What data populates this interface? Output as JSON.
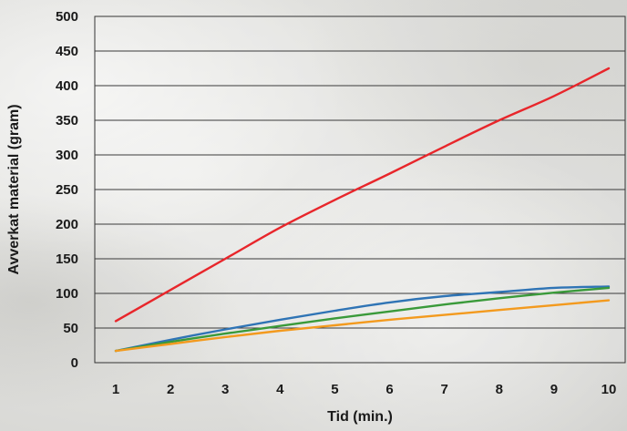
{
  "chart_data": {
    "type": "line",
    "title": "",
    "xlabel": "Tid (min.)",
    "ylabel": "Avverkat material (gram)",
    "xlim": [
      1,
      10
    ],
    "ylim": [
      0,
      500
    ],
    "x_ticks": [
      "1",
      "2",
      "3",
      "4",
      "5",
      "6",
      "7",
      "8",
      "9",
      "10"
    ],
    "y_ticks": [
      "0",
      "50",
      "100",
      "150",
      "200",
      "250",
      "300",
      "350",
      "400",
      "450",
      "500"
    ],
    "grid": true,
    "legend": "none",
    "x": [
      1,
      2,
      3,
      4,
      5,
      6,
      7,
      8,
      9,
      10
    ],
    "series": [
      {
        "color": "#e8262b",
        "values": [
          60,
          105,
          150,
          195,
          235,
          273,
          312,
          350,
          385,
          425
        ]
      },
      {
        "color": "#2f74b5",
        "values": [
          17,
          33,
          48,
          62,
          75,
          87,
          96,
          102,
          108,
          110
        ]
      },
      {
        "color": "#3a9a3a",
        "values": [
          17,
          30,
          42,
          53,
          64,
          74,
          84,
          93,
          101,
          108
        ]
      },
      {
        "color": "#f39a1e",
        "values": [
          17,
          27,
          37,
          46,
          54,
          62,
          69,
          76,
          83,
          90
        ]
      }
    ]
  }
}
